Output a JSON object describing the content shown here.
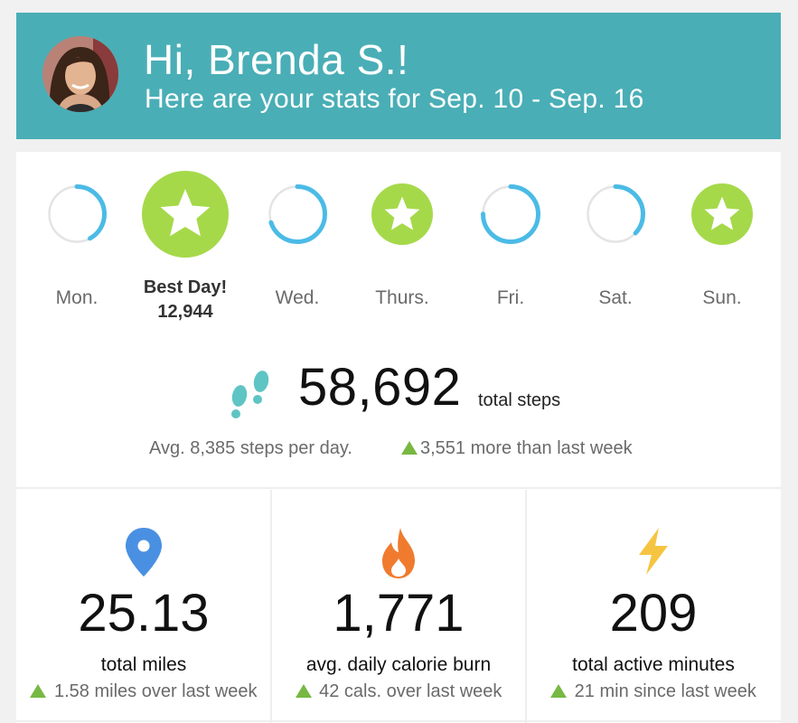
{
  "header": {
    "greeting": "Hi, Brenda S.!",
    "subtitle": "Here are your stats for Sep. 10 - Sep. 16"
  },
  "days": [
    {
      "label": "Mon.",
      "goal_fraction": 0.42,
      "goal_met": false
    },
    {
      "label": "Best Day!",
      "steps": "12,944",
      "goal_met": true,
      "best": true
    },
    {
      "label": "Wed.",
      "goal_fraction": 0.7,
      "goal_met": false
    },
    {
      "label": "Thurs.",
      "goal_met": true
    },
    {
      "label": "Fri.",
      "goal_fraction": 0.75,
      "goal_met": false
    },
    {
      "label": "Sat.",
      "goal_fraction": 0.37,
      "goal_met": false
    },
    {
      "label": "Sun.",
      "goal_met": true
    }
  ],
  "steps": {
    "total": "58,692",
    "total_label": "total steps",
    "average": "Avg. 8,385 steps per day.",
    "comparison": "3,551 more than last week"
  },
  "stats": [
    {
      "icon": "map-pin-icon",
      "value": "25.13",
      "label": "total miles",
      "diff": "1.58 miles over last week"
    },
    {
      "icon": "flame-icon",
      "value": "1,771",
      "label": "avg. daily calorie burn",
      "diff": "42 cals. over last week"
    },
    {
      "icon": "lightning-icon",
      "value": "209",
      "label": "total active minutes",
      "diff": "21 min since last week"
    }
  ],
  "colors": {
    "header": "#4aaeb6",
    "progress": "#4bbbe6",
    "track": "#e4e4e4",
    "goal": "#a5d94a",
    "up_arrow": "#77b843"
  }
}
